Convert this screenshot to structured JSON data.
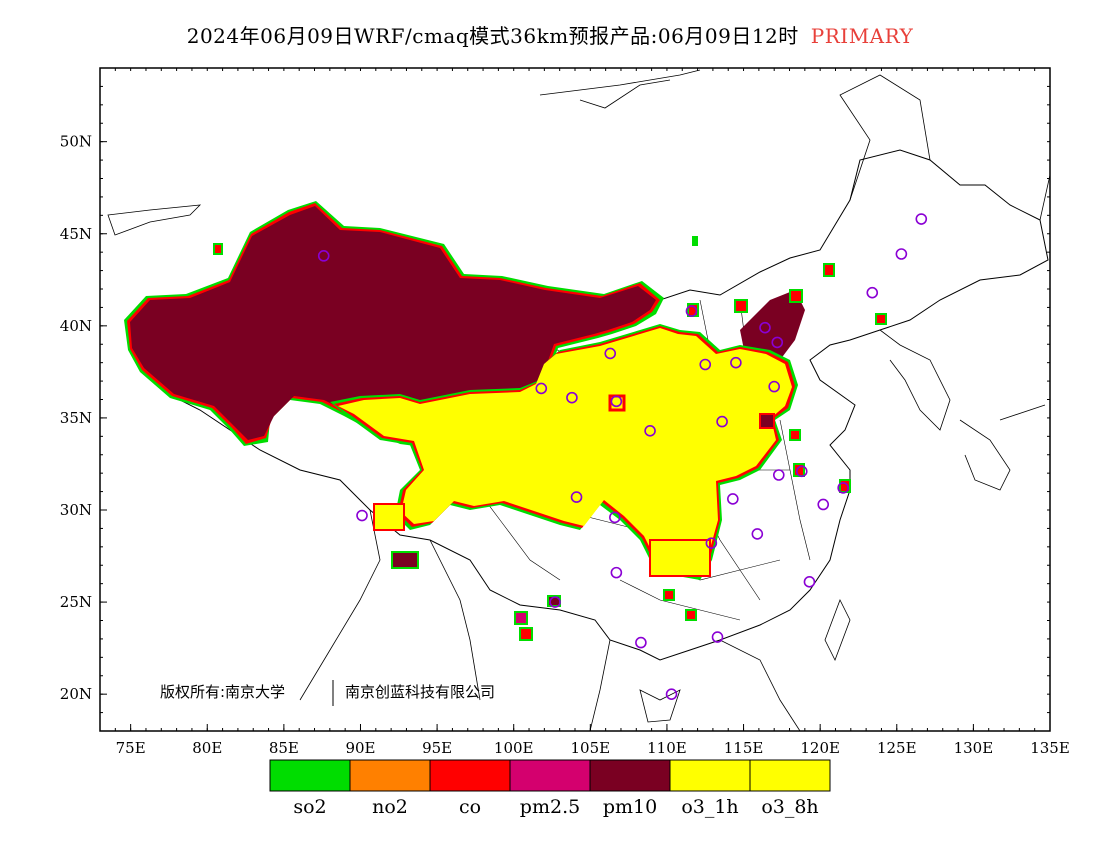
{
  "title": {
    "main": "2024年06月09日WRF/cmaq模式36km预报产品:06月09日12时",
    "mode": "PRIMARY",
    "mode_color": "#e8403a"
  },
  "map": {
    "lon_range": [
      73,
      135
    ],
    "lat_range": [
      18,
      54
    ],
    "x_ticks": [
      "75E",
      "80E",
      "85E",
      "90E",
      "95E",
      "100E",
      "105E",
      "110E",
      "115E",
      "120E",
      "125E",
      "130E",
      "135E"
    ],
    "y_ticks": [
      "20N",
      "25N",
      "30N",
      "35N",
      "40N",
      "45N",
      "50N"
    ],
    "copyright_left": "版权所有:南京大学",
    "copyright_right": "南京创蓝科技有限公司"
  },
  "legend": {
    "items": [
      {
        "label": "so2",
        "color": "#00dd00"
      },
      {
        "label": "no2",
        "color": "#ff8000"
      },
      {
        "label": "co",
        "color": "#ff0000"
      },
      {
        "label": "pm2.5",
        "color": "#d4006e"
      },
      {
        "label": "pm10",
        "color": "#7a0022"
      },
      {
        "label": "o3_1h",
        "color": "#ffff00"
      },
      {
        "label": "o3_8h",
        "color": "#ffff00"
      }
    ]
  },
  "stations": [
    [
      87.6,
      43.8
    ],
    [
      101.8,
      36.6
    ],
    [
      103.8,
      36.1
    ],
    [
      106.3,
      38.5
    ],
    [
      106.7,
      26.6
    ],
    [
      104.1,
      30.7
    ],
    [
      102.7,
      25.0
    ],
    [
      108.9,
      34.3
    ],
    [
      111.6,
      40.8
    ],
    [
      112.5,
      37.9
    ],
    [
      113.6,
      34.8
    ],
    [
      114.5,
      38.0
    ],
    [
      116.4,
      39.9
    ],
    [
      117.2,
      39.1
    ],
    [
      117.0,
      36.7
    ],
    [
      117.3,
      31.9
    ],
    [
      118.8,
      32.1
    ],
    [
      120.2,
      30.3
    ],
    [
      121.5,
      31.2
    ],
    [
      119.3,
      26.1
    ],
    [
      115.9,
      28.7
    ],
    [
      114.3,
      30.6
    ],
    [
      112.9,
      28.2
    ],
    [
      106.6,
      29.6
    ],
    [
      108.3,
      22.8
    ],
    [
      113.3,
      23.1
    ],
    [
      110.3,
      20.0
    ],
    [
      123.4,
      41.8
    ],
    [
      125.3,
      43.9
    ],
    [
      126.6,
      45.8
    ],
    [
      90.1,
      29.7
    ],
    [
      106.7,
      35.9
    ]
  ]
}
